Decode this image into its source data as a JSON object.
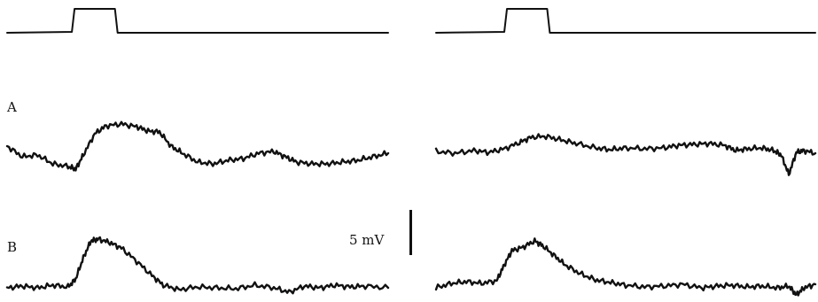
{
  "chart_data": {
    "type": "line",
    "rows": [
      "A",
      "B"
    ],
    "scale_bar_label": "5 mV",
    "stimulus": {
      "left_onset_fraction": 0.17,
      "left_offset_fraction": 0.29,
      "right_onset_fraction": 0.18,
      "right_offset_fraction": 0.3
    },
    "traces": [
      {
        "row": "A",
        "panel": "left",
        "x": [
          0.0,
          0.04,
          0.08,
          0.12,
          0.16,
          0.18,
          0.2,
          0.23,
          0.26,
          0.3,
          0.34,
          0.37,
          0.4,
          0.43,
          0.46,
          0.5,
          0.54,
          0.58,
          0.62,
          0.66,
          0.7,
          0.73,
          0.76,
          0.8,
          0.84,
          0.88,
          0.92,
          0.96,
          1.0
        ],
        "y": [
          0.0,
          -1.2,
          -1.0,
          -2.0,
          -2.3,
          -2.6,
          -1.0,
          1.4,
          2.3,
          2.5,
          2.2,
          1.7,
          1.6,
          0.0,
          -0.8,
          -1.8,
          -2.0,
          -1.6,
          -1.4,
          -0.8,
          -0.6,
          -1.2,
          -1.8,
          -2.0,
          -2.0,
          -1.8,
          -1.6,
          -1.2,
          -0.8
        ]
      },
      {
        "row": "A",
        "panel": "right",
        "x": [
          0.0,
          0.05,
          0.1,
          0.14,
          0.18,
          0.22,
          0.25,
          0.29,
          0.33,
          0.37,
          0.42,
          0.46,
          0.5,
          0.55,
          0.6,
          0.64,
          0.68,
          0.72,
          0.76,
          0.79,
          0.82,
          0.86,
          0.89,
          0.91,
          0.93,
          0.95,
          0.97,
          1.0
        ],
        "y": [
          -0.6,
          -0.8,
          -0.5,
          -0.7,
          -0.3,
          0.4,
          1.0,
          1.1,
          0.7,
          0.3,
          -0.2,
          -0.4,
          -0.2,
          -0.3,
          -0.2,
          0.1,
          0.2,
          0.3,
          0.1,
          -0.5,
          -0.3,
          -0.2,
          -0.5,
          -1.0,
          -3.2,
          -0.7,
          -0.5,
          -0.8
        ]
      },
      {
        "row": "B",
        "panel": "left",
        "x": [
          0.0,
          0.04,
          0.08,
          0.12,
          0.16,
          0.18,
          0.2,
          0.22,
          0.24,
          0.27,
          0.3,
          0.34,
          0.38,
          0.41,
          0.45,
          0.5,
          0.55,
          0.6,
          0.65,
          0.7,
          0.74,
          0.78,
          0.82,
          0.86,
          0.9,
          0.94,
          1.0
        ],
        "y": [
          0.0,
          0.2,
          0.0,
          0.3,
          0.1,
          1.0,
          3.4,
          5.3,
          5.5,
          5.1,
          4.5,
          3.0,
          1.4,
          0.3,
          -0.2,
          0.1,
          0.0,
          -0.1,
          0.3,
          0.0,
          -0.5,
          0.2,
          0.0,
          0.3,
          0.1,
          0.2,
          0.0
        ]
      },
      {
        "row": "B",
        "panel": "right",
        "x": [
          0.0,
          0.04,
          0.08,
          0.12,
          0.16,
          0.18,
          0.2,
          0.23,
          0.26,
          0.28,
          0.31,
          0.34,
          0.38,
          0.42,
          0.46,
          0.5,
          0.55,
          0.6,
          0.65,
          0.7,
          0.74,
          0.78,
          0.82,
          0.86,
          0.9,
          0.93,
          0.95,
          0.97,
          1.0
        ],
        "y": [
          0.0,
          0.5,
          0.7,
          0.5,
          0.8,
          2.6,
          4.2,
          4.6,
          5.3,
          4.8,
          3.7,
          2.6,
          1.6,
          0.9,
          0.6,
          0.3,
          0.1,
          0.2,
          0.4,
          0.0,
          0.2,
          0.3,
          0.1,
          0.2,
          0.0,
          0.2,
          -0.8,
          0.0,
          0.4
        ]
      }
    ]
  }
}
